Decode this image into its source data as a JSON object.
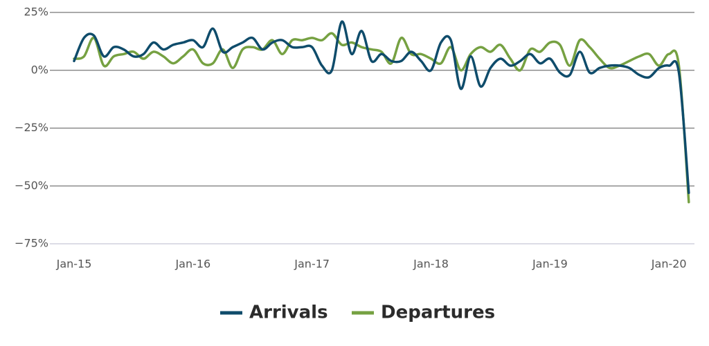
{
  "chart_data": {
    "type": "line",
    "categories": [
      "Jan-15",
      null,
      null,
      null,
      null,
      null,
      null,
      null,
      null,
      null,
      null,
      null,
      "Jan-16",
      null,
      null,
      null,
      null,
      null,
      null,
      null,
      null,
      null,
      null,
      null,
      "Jan-17",
      null,
      null,
      null,
      null,
      null,
      null,
      null,
      null,
      null,
      null,
      null,
      "Jan-18",
      null,
      null,
      null,
      null,
      null,
      null,
      null,
      null,
      null,
      null,
      null,
      "Jan-19",
      null,
      null,
      null,
      null,
      null,
      null,
      null,
      null,
      null,
      null,
      null,
      "Jan-20",
      null,
      null
    ],
    "series": [
      {
        "name": "Arrivals",
        "color": "#0f4c6b",
        "values": [
          4,
          14,
          15,
          6,
          10,
          9,
          6,
          7,
          12,
          9,
          11,
          12,
          13,
          10,
          18,
          8,
          10,
          12,
          14,
          9,
          12,
          13,
          10,
          10,
          10,
          2,
          0,
          21,
          7,
          17,
          4,
          7,
          4,
          4,
          8,
          4,
          0,
          12,
          13,
          -8,
          6,
          -7,
          1,
          5,
          2,
          4,
          7,
          3,
          5,
          -1,
          -2,
          8,
          -1,
          1,
          2,
          2,
          1,
          -2,
          -3,
          1,
          2,
          -1,
          -53
        ]
      },
      {
        "name": "Departures",
        "color": "#76a142",
        "values": [
          5,
          6,
          14,
          2,
          6,
          7,
          8,
          5,
          8,
          6,
          3,
          6,
          9,
          3,
          3,
          9,
          1,
          9,
          10,
          9,
          13,
          7,
          13,
          13,
          14,
          13,
          16,
          11,
          12,
          10,
          9,
          8,
          3,
          14,
          7,
          7,
          5,
          3,
          10,
          0,
          7,
          10,
          8,
          11,
          5,
          0,
          9,
          8,
          12,
          11,
          2,
          13,
          10,
          5,
          1,
          2,
          4,
          6,
          7,
          2,
          7,
          2,
          -57
        ]
      }
    ],
    "ylim": [
      -75,
      25
    ],
    "yticks": [
      {
        "value": 25,
        "label": "25%"
      },
      {
        "value": 0,
        "label": "0%"
      },
      {
        "value": -25,
        "label": "−25%"
      },
      {
        "value": -50,
        "label": "−50%"
      },
      {
        "value": -75,
        "label": "−75%"
      }
    ],
    "grid": true,
    "legend": "bottom"
  }
}
